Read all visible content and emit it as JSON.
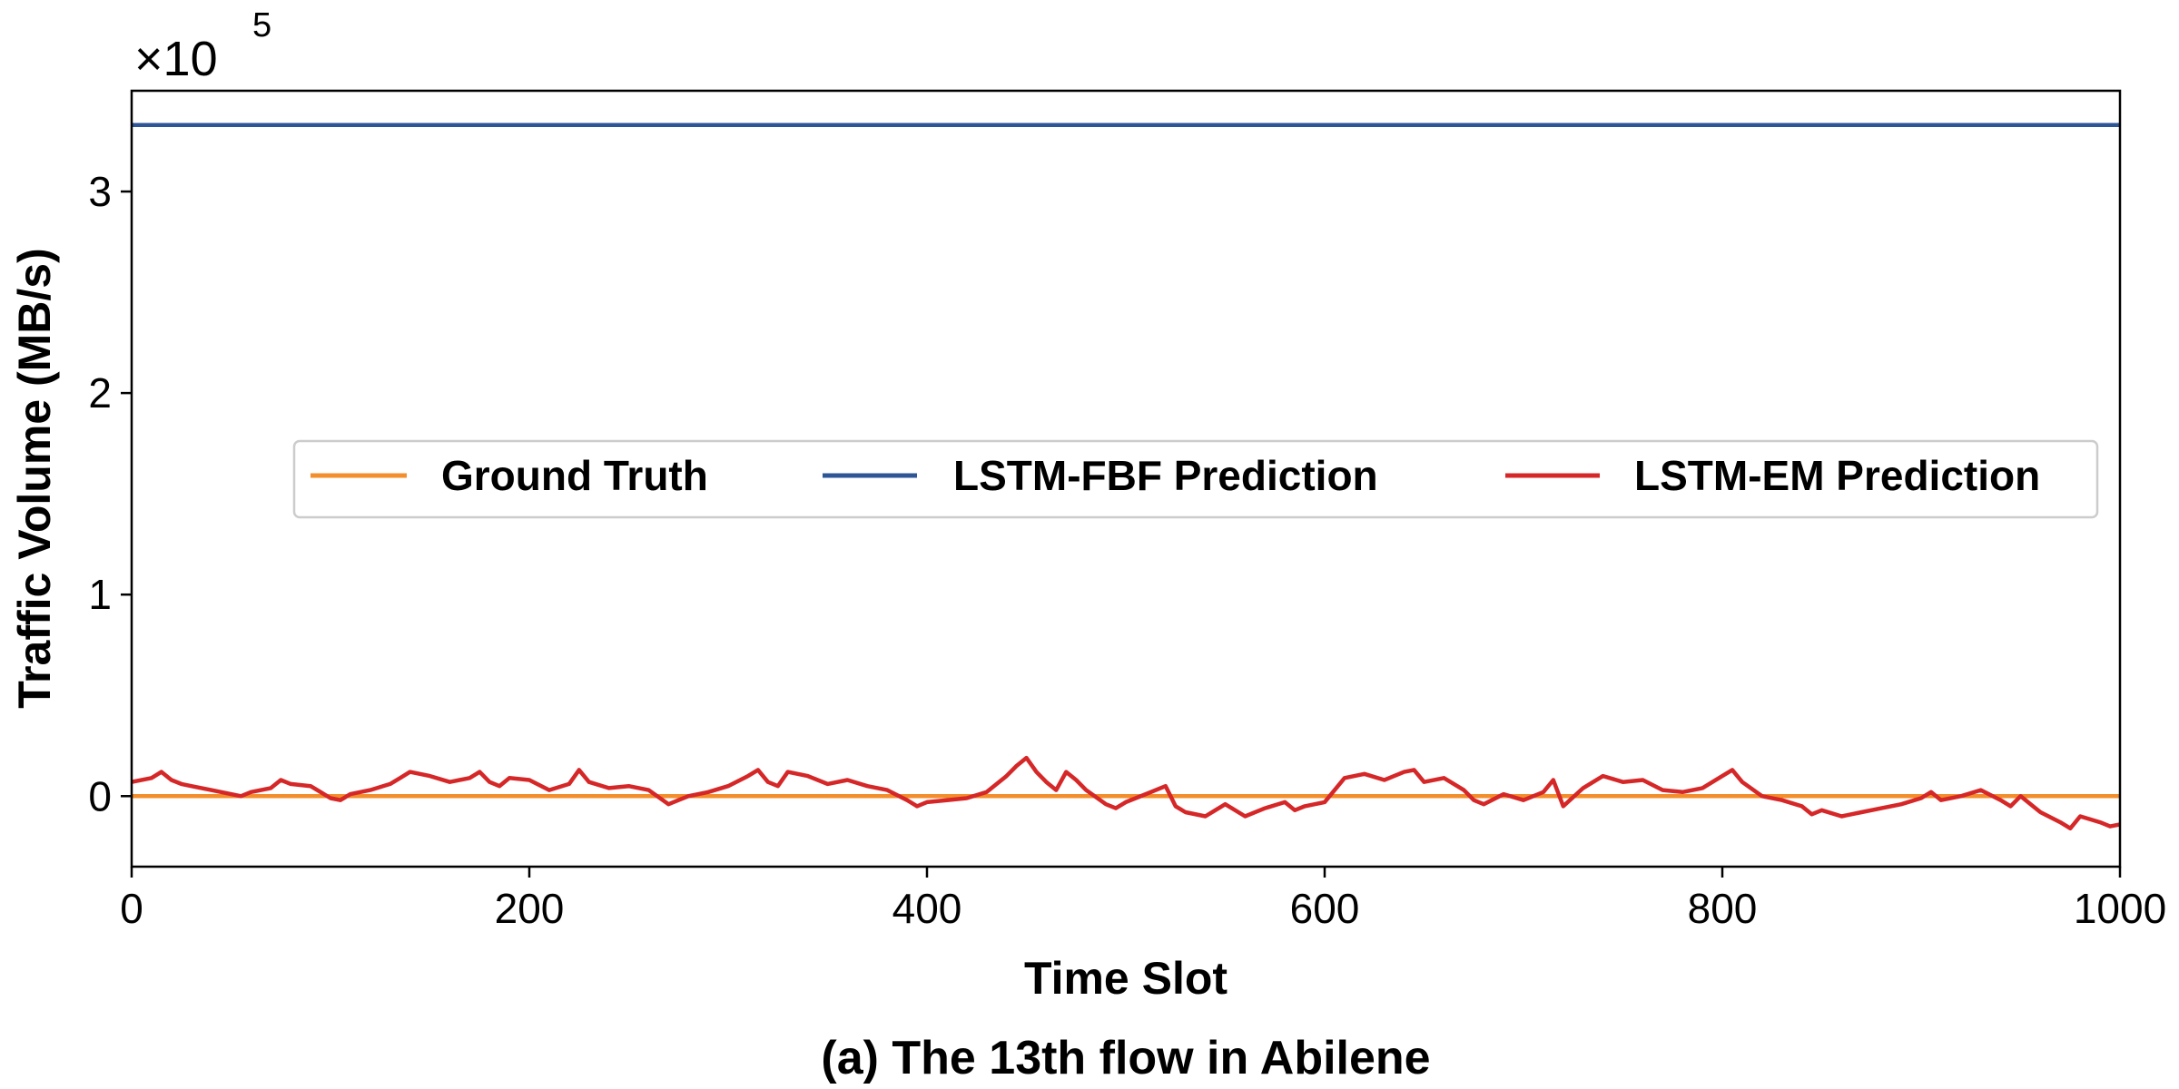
{
  "chart_data": {
    "type": "line",
    "title": "",
    "caption": "(a) The 13th flow in Abilene",
    "xlabel": "Time Slot",
    "ylabel": "Traffic Volume (MB/s)",
    "y_multiplier": {
      "base": "×10",
      "exponent": "5"
    },
    "xlim": [
      0,
      1000
    ],
    "ylim": [
      -35000,
      350000
    ],
    "x_ticks": [
      0,
      200,
      400,
      600,
      800,
      1000
    ],
    "x_tick_labels": [
      "0",
      "200",
      "400",
      "600",
      "800",
      "1000"
    ],
    "y_ticks": [
      0,
      100000,
      200000,
      300000
    ],
    "y_tick_labels": [
      "0",
      "1",
      "2",
      "3"
    ],
    "legend_position": "center",
    "grid": false,
    "series": [
      {
        "name": "Ground Truth",
        "color": "#f28e2b",
        "x": [
          0,
          1000
        ],
        "y": [
          0,
          0
        ]
      },
      {
        "name": "LSTM-FBF Prediction",
        "color": "#2e5596",
        "x": [
          0,
          1000
        ],
        "y": [
          333000,
          333000
        ]
      },
      {
        "name": "LSTM-EM Prediction",
        "color": "#d62728",
        "x": [
          0,
          10,
          15,
          20,
          25,
          30,
          40,
          50,
          55,
          60,
          70,
          75,
          80,
          90,
          95,
          100,
          105,
          110,
          120,
          130,
          135,
          140,
          145,
          150,
          160,
          170,
          175,
          180,
          185,
          190,
          200,
          210,
          220,
          225,
          230,
          240,
          250,
          260,
          270,
          275,
          280,
          290,
          300,
          310,
          315,
          320,
          325,
          330,
          340,
          350,
          360,
          370,
          380,
          390,
          395,
          400,
          410,
          420,
          430,
          440,
          445,
          450,
          455,
          460,
          465,
          470,
          475,
          480,
          490,
          495,
          500,
          510,
          520,
          525,
          530,
          540,
          545,
          550,
          560,
          570,
          580,
          585,
          590,
          600,
          610,
          620,
          630,
          640,
          645,
          650,
          660,
          670,
          675,
          680,
          690,
          700,
          710,
          715,
          720,
          730,
          740,
          750,
          760,
          770,
          780,
          790,
          800,
          805,
          810,
          820,
          830,
          840,
          845,
          850,
          860,
          870,
          880,
          890,
          900,
          905,
          910,
          920,
          930,
          940,
          945,
          950,
          960,
          970,
          975,
          980,
          990,
          995,
          1000
        ],
        "y": [
          7000,
          9000,
          12000,
          8000,
          6000,
          5000,
          3000,
          1000,
          0,
          2000,
          4000,
          8000,
          6000,
          5000,
          2000,
          -1000,
          -2000,
          1000,
          3000,
          6000,
          9000,
          12000,
          11000,
          10000,
          7000,
          9000,
          12000,
          7000,
          5000,
          9000,
          8000,
          3000,
          6000,
          13000,
          7000,
          4000,
          5000,
          3000,
          -4000,
          -2000,
          0,
          2000,
          5000,
          10000,
          13000,
          7000,
          5000,
          12000,
          10000,
          6000,
          8000,
          5000,
          3000,
          -2000,
          -5000,
          -3000,
          -2000,
          -1000,
          2000,
          10000,
          15000,
          19000,
          12000,
          7000,
          3000,
          12000,
          8000,
          3000,
          -4000,
          -6000,
          -3000,
          1000,
          5000,
          -5000,
          -8000,
          -10000,
          -7000,
          -4000,
          -10000,
          -6000,
          -3000,
          -7000,
          -5000,
          -3000,
          9000,
          11000,
          8000,
          12000,
          13000,
          7000,
          9000,
          3000,
          -2000,
          -4000,
          1000,
          -2000,
          2000,
          8000,
          -5000,
          4000,
          10000,
          7000,
          8000,
          3000,
          2000,
          4000,
          10000,
          13000,
          7000,
          0,
          -2000,
          -5000,
          -9000,
          -7000,
          -10000,
          -8000,
          -6000,
          -4000,
          -1000,
          2000,
          -2000,
          0,
          3000,
          -2000,
          -5000,
          0,
          -8000,
          -13000,
          -16000,
          -10000,
          -13000,
          -15000,
          -14000
        ]
      }
    ]
  }
}
